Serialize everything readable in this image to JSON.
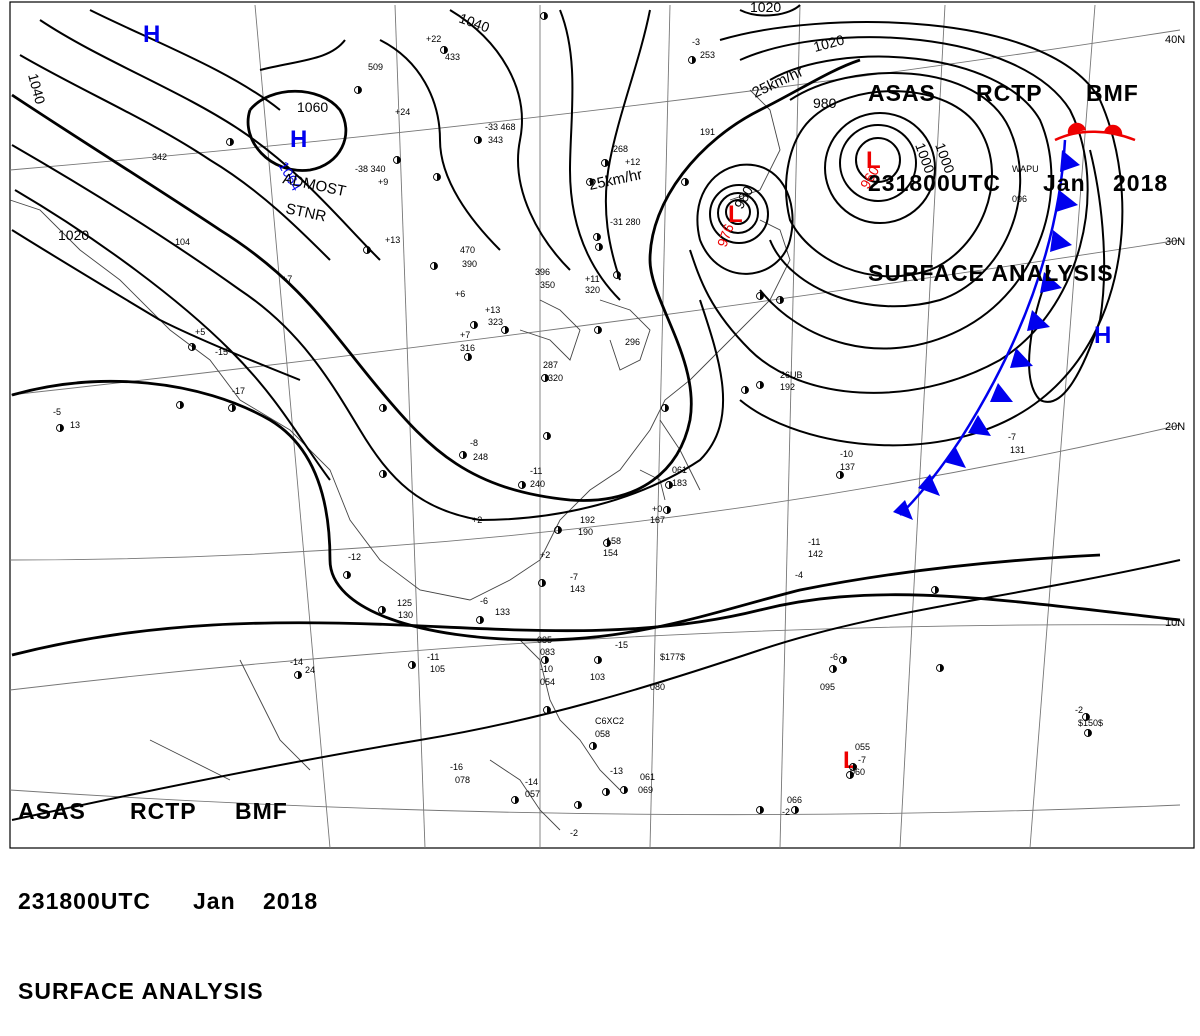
{
  "header": {
    "line1": [
      "ASAS",
      "RCTP",
      "BMF"
    ],
    "line2": [
      "231800UTC",
      "Jan",
      "2018"
    ],
    "line3": "SURFACE ANALYSIS"
  },
  "latitude_labels": [
    "40N",
    "30N",
    "20N",
    "10N"
  ],
  "isobar_labels": [
    "1040",
    "1040",
    "1020",
    "1020",
    "1020",
    "1060",
    "1000",
    "1000",
    "980",
    "980"
  ],
  "pressure_centers": [
    {
      "type": "H",
      "value": "1064"
    },
    {
      "type": "L",
      "value": "960"
    },
    {
      "type": "L",
      "value": "976"
    },
    {
      "type": "H",
      "value": ""
    },
    {
      "type": "H",
      "value": ""
    },
    {
      "type": "L",
      "value": ""
    }
  ],
  "annotations": {
    "admost": "ADMOST",
    "stnr": "STNR",
    "speed_a": "25km/hr",
    "speed_b": "25km/hr"
  },
  "station_texts": [
    "342",
    "-38 340",
    "+9",
    "268",
    "+12",
    "-31 280",
    "191",
    "509",
    "+22",
    "433",
    "-3",
    "253",
    "+24",
    "-33 468",
    "343",
    "+13",
    "470",
    "390",
    "+6",
    "396",
    "350",
    "+11",
    "320",
    "+13",
    "323",
    "+7",
    "316",
    "+7",
    "296",
    "287",
    "320",
    "+5",
    "-15",
    "-17",
    "-5",
    "13",
    "104",
    "-8",
    "248",
    "-11",
    "240",
    "+2",
    "192",
    "190",
    "+2",
    "158",
    "154",
    "-7",
    "143",
    "-12",
    "125",
    "130",
    "-6",
    "133",
    "-11",
    "105",
    "-14",
    "24",
    "085",
    "083",
    "-10",
    "054",
    "-15",
    "103",
    "$177$",
    "080",
    "C6XC2",
    "058",
    "-13",
    "061",
    "069",
    "-16",
    "078",
    "-14",
    "057",
    "-2",
    "061",
    "183",
    "+0",
    "167",
    "-10",
    "137",
    "-7",
    "131",
    "-11",
    "142",
    "-4",
    "WAPU",
    "096",
    "26UB",
    "192",
    "-6",
    "095",
    "-2",
    "$150$",
    "055",
    "-7",
    "066",
    "-2",
    "060",
    "-15",
    "3"
  ],
  "colors": {
    "isobar": "#000000",
    "high": "#0000ee",
    "low": "#ee0000",
    "cold_front": "#0000ee",
    "warm_front": "#ee0000",
    "coast": "#555555",
    "grid": "#666666"
  },
  "front_types": [
    "cold front",
    "warm front"
  ],
  "icons": [
    "cold-front-triangles",
    "warm-front-semicircles",
    "station-model"
  ]
}
